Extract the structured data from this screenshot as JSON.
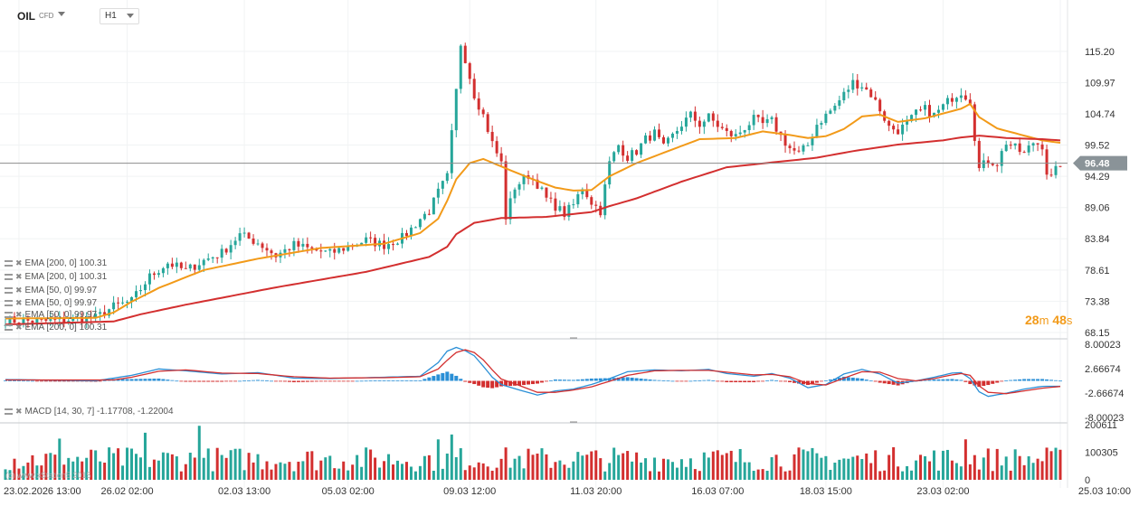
{
  "header": {
    "symbol": "OIL",
    "symbol_type": "CFD",
    "timeframe": "H1"
  },
  "legends": [
    "EMA [200, 0] 100.31",
    "EMA [200, 0] 100.31",
    "EMA [50, 0] 99.97",
    "EMA [50, 0] 99.97",
    "EMA [50, 0] 99.97",
    "EMA [200, 0] 100.31"
  ],
  "macd_legend": "MACD [14, 30, 7] -1.17708, -1.22004",
  "timer": {
    "minutes": "28",
    "m_unit": "m",
    "seconds": "48",
    "s_unit": "s"
  },
  "watermark": "(c) www.xStation5 2015",
  "colors": {
    "up": "#26a69a",
    "down": "#d32f2f",
    "ema50": "#f29a19",
    "ema200": "#d32f2f",
    "macd_line": "#2a8fd6",
    "signal_line": "#d32f2f",
    "price_tag": "#8a9398"
  },
  "chart_data": [
    {
      "type": "candlestick",
      "title": "OIL",
      "y_ticks": [
        "115.20",
        "109.97",
        "104.74",
        "99.52",
        "94.29",
        "89.06",
        "83.84",
        "78.61",
        "73.38",
        "68.15"
      ],
      "ylim": [
        68.15,
        118.5
      ],
      "current_price": "96.48",
      "x_ticks": [
        "23.02.2026 13:00",
        "26.02 02:00",
        "02.03 13:00",
        "05.03 02:00",
        "09.03 12:00",
        "11.03 20:00",
        "16.03 07:00",
        "18.03 15:00",
        "23.03 02:00",
        "25.03 10:00"
      ],
      "close_path": [
        [
          0,
          70.2
        ],
        [
          8,
          70.0
        ],
        [
          14,
          70.3
        ],
        [
          20,
          70.6
        ],
        [
          24,
          72.5
        ],
        [
          28,
          73.4
        ],
        [
          32,
          77.5
        ],
        [
          36,
          79.8
        ],
        [
          40,
          78.5
        ],
        [
          44,
          80.2
        ],
        [
          48,
          81.5
        ],
        [
          52,
          84.5
        ],
        [
          56,
          83.2
        ],
        [
          60,
          81.0
        ],
        [
          64,
          82.8
        ],
        [
          68,
          82.0
        ],
        [
          72,
          81.4
        ],
        [
          76,
          82.5
        ],
        [
          80,
          83.6
        ],
        [
          84,
          82.8
        ],
        [
          88,
          84.0
        ],
        [
          90,
          85.5
        ],
        [
          92,
          87.2
        ],
        [
          94,
          88.5
        ],
        [
          96,
          91.6
        ],
        [
          98,
          94.2
        ],
        [
          100,
          108.5
        ],
        [
          101,
          116.5
        ],
        [
          102,
          114.0
        ],
        [
          104,
          108.0
        ],
        [
          106,
          104.5
        ],
        [
          108,
          99.8
        ],
        [
          110,
          96.5
        ],
        [
          111,
          87.5
        ],
        [
          113,
          92.5
        ],
        [
          116,
          94.5
        ],
        [
          118,
          93.0
        ],
        [
          120,
          90.5
        ],
        [
          122,
          89.3
        ],
        [
          124,
          88.0
        ],
        [
          126,
          89.5
        ],
        [
          128,
          92.5
        ],
        [
          130,
          90.0
        ],
        [
          132,
          88.5
        ],
        [
          134,
          96.5
        ],
        [
          136,
          99.5
        ],
        [
          138,
          97.5
        ],
        [
          140,
          98.5
        ],
        [
          142,
          100.5
        ],
        [
          144,
          101.5
        ],
        [
          146,
          99.0
        ],
        [
          148,
          101.0
        ],
        [
          150,
          103.0
        ],
        [
          152,
          104.5
        ],
        [
          154,
          103.0
        ],
        [
          156,
          104.2
        ],
        [
          158,
          102.8
        ],
        [
          160,
          101.5
        ],
        [
          162,
          101.0
        ],
        [
          164,
          102.5
        ],
        [
          166,
          103.8
        ],
        [
          168,
          103.0
        ],
        [
          170,
          103.5
        ],
        [
          172,
          101.0
        ],
        [
          174,
          99.0
        ],
        [
          176,
          98.0
        ],
        [
          178,
          99.5
        ],
        [
          180,
          103.0
        ],
        [
          182,
          104.5
        ],
        [
          184,
          106.0
        ],
        [
          186,
          108.0
        ],
        [
          188,
          110.0
        ],
        [
          190,
          109.5
        ],
        [
          192,
          108.0
        ],
        [
          194,
          105.5
        ],
        [
          196,
          102.5
        ],
        [
          198,
          102.0
        ],
        [
          200,
          103.0
        ],
        [
          202,
          104.8
        ],
        [
          204,
          105.5
        ],
        [
          206,
          104.5
        ],
        [
          208,
          106.0
        ],
        [
          210,
          107.5
        ],
        [
          212,
          108.5
        ],
        [
          214,
          107.0
        ],
        [
          215,
          101.0
        ],
        [
          216,
          95.5
        ],
        [
          218,
          97.0
        ],
        [
          220,
          96.5
        ],
        [
          222,
          100.0
        ],
        [
          224,
          99.0
        ],
        [
          226,
          98.0
        ],
        [
          228,
          100.0
        ],
        [
          230,
          99.5
        ],
        [
          231,
          95.0
        ],
        [
          232,
          94.0
        ],
        [
          234,
          96.5
        ]
      ]
    },
    {
      "type": "line",
      "series": [
        {
          "name": "EMA [50, 0]",
          "values_path": [
            [
              0,
              70.5
            ],
            [
              20,
              70.6
            ],
            [
              24,
              71.5
            ],
            [
              28,
              73.3
            ],
            [
              34,
              75.6
            ],
            [
              44,
              78.6
            ],
            [
              56,
              80.5
            ],
            [
              70,
              82.3
            ],
            [
              84,
              83.0
            ],
            [
              92,
              84.8
            ],
            [
              96,
              87.2
            ],
            [
              98,
              90.2
            ],
            [
              100,
              93.8
            ],
            [
              103,
              96.5
            ],
            [
              106,
              97.2
            ],
            [
              112,
              95.3
            ],
            [
              118,
              93.5
            ],
            [
              122,
              92.4
            ],
            [
              126,
              91.9
            ],
            [
              130,
              92.0
            ],
            [
              134,
              94.3
            ],
            [
              140,
              96.5
            ],
            [
              148,
              98.8
            ],
            [
              154,
              100.5
            ],
            [
              162,
              100.7
            ],
            [
              168,
              101.8
            ],
            [
              174,
              101.2
            ],
            [
              178,
              100.7
            ],
            [
              182,
              101.0
            ],
            [
              186,
              102.2
            ],
            [
              190,
              104.3
            ],
            [
              194,
              104.6
            ],
            [
              198,
              103.4
            ],
            [
              204,
              104.0
            ],
            [
              208,
              104.8
            ],
            [
              212,
              105.6
            ],
            [
              214,
              106.4
            ],
            [
              216,
              104.2
            ],
            [
              220,
              102.3
            ],
            [
              226,
              101.1
            ],
            [
              230,
              100.3
            ],
            [
              234,
              99.9
            ]
          ]
        },
        {
          "name": "EMA [200, 0]",
          "values_path": [
            [
              0,
              69.5
            ],
            [
              24,
              70.0
            ],
            [
              30,
              71.2
            ],
            [
              40,
              72.8
            ],
            [
              60,
              75.7
            ],
            [
              80,
              78.3
            ],
            [
              94,
              80.8
            ],
            [
              98,
              82.5
            ],
            [
              100,
              84.6
            ],
            [
              104,
              86.5
            ],
            [
              110,
              87.3
            ],
            [
              120,
              87.5
            ],
            [
              130,
              88.3
            ],
            [
              134,
              89.3
            ],
            [
              140,
              90.6
            ],
            [
              150,
              93.4
            ],
            [
              160,
              95.8
            ],
            [
              170,
              96.6
            ],
            [
              180,
              97.4
            ],
            [
              188,
              98.5
            ],
            [
              198,
              99.6
            ],
            [
              208,
              100.3
            ],
            [
              212,
              100.8
            ],
            [
              216,
              101.1
            ],
            [
              222,
              100.7
            ],
            [
              230,
              100.5
            ],
            [
              234,
              100.3
            ]
          ]
        }
      ]
    },
    {
      "type": "macd",
      "name": "MACD [14, 30, 7]",
      "y_ticks": [
        "8.00023",
        "2.66674",
        "-2.66674",
        "-8.00023"
      ],
      "ylim": [
        -8.00023,
        8.00023
      ],
      "macd_path": [
        [
          0,
          0.3
        ],
        [
          20,
          0
        ],
        [
          24,
          0.6
        ],
        [
          28,
          1.2
        ],
        [
          34,
          2.6
        ],
        [
          40,
          2.2
        ],
        [
          48,
          1.5
        ],
        [
          56,
          1.8
        ],
        [
          64,
          0.6
        ],
        [
          72,
          0.5
        ],
        [
          84,
          0.8
        ],
        [
          92,
          1.0
        ],
        [
          96,
          4.0
        ],
        [
          98,
          6.5
        ],
        [
          100,
          7.3
        ],
        [
          102,
          6.6
        ],
        [
          104,
          5.5
        ],
        [
          106,
          3.2
        ],
        [
          108,
          0.8
        ],
        [
          110,
          -0.8
        ],
        [
          114,
          -2.0
        ],
        [
          118,
          -3.1
        ],
        [
          122,
          -2.2
        ],
        [
          126,
          -1.8
        ],
        [
          130,
          -0.8
        ],
        [
          134,
          0.5
        ],
        [
          138,
          2.0
        ],
        [
          144,
          2.4
        ],
        [
          150,
          2.2
        ],
        [
          156,
          2.5
        ],
        [
          160,
          1.6
        ],
        [
          166,
          1.0
        ],
        [
          170,
          1.6
        ],
        [
          174,
          0.6
        ],
        [
          178,
          -1.5
        ],
        [
          182,
          -0.8
        ],
        [
          186,
          1.5
        ],
        [
          190,
          2.5
        ],
        [
          194,
          1.5
        ],
        [
          198,
          -0.5
        ],
        [
          202,
          0
        ],
        [
          206,
          0.8
        ],
        [
          210,
          1.7
        ],
        [
          212,
          1.8
        ],
        [
          214,
          0.5
        ],
        [
          216,
          -2.4
        ],
        [
          218,
          -3.4
        ],
        [
          222,
          -2.7
        ],
        [
          226,
          -1.8
        ],
        [
          230,
          -1.2
        ],
        [
          234,
          -1.177
        ]
      ],
      "signal_path": [
        [
          0,
          0.2
        ],
        [
          24,
          0.2
        ],
        [
          28,
          0.8
        ],
        [
          34,
          2.1
        ],
        [
          40,
          2.4
        ],
        [
          48,
          1.7
        ],
        [
          56,
          1.6
        ],
        [
          64,
          0.9
        ],
        [
          72,
          0.6
        ],
        [
          84,
          0.7
        ],
        [
          92,
          0.9
        ],
        [
          96,
          2.6
        ],
        [
          98,
          4.5
        ],
        [
          100,
          6.2
        ],
        [
          102,
          6.8
        ],
        [
          104,
          6.2
        ],
        [
          106,
          4.6
        ],
        [
          108,
          2.4
        ],
        [
          110,
          0.4
        ],
        [
          114,
          -1.0
        ],
        [
          118,
          -2.5
        ],
        [
          122,
          -2.5
        ],
        [
          126,
          -2.0
        ],
        [
          130,
          -1.3
        ],
        [
          134,
          -0.1
        ],
        [
          138,
          1.2
        ],
        [
          144,
          2.2
        ],
        [
          150,
          2.3
        ],
        [
          156,
          2.3
        ],
        [
          160,
          1.9
        ],
        [
          166,
          1.3
        ],
        [
          170,
          1.4
        ],
        [
          174,
          0.9
        ],
        [
          178,
          -0.6
        ],
        [
          182,
          -0.9
        ],
        [
          186,
          0.6
        ],
        [
          190,
          2.0
        ],
        [
          194,
          1.9
        ],
        [
          198,
          0.5
        ],
        [
          202,
          0
        ],
        [
          206,
          0.5
        ],
        [
          210,
          1.3
        ],
        [
          212,
          1.6
        ],
        [
          214,
          1.2
        ],
        [
          216,
          -1.1
        ],
        [
          218,
          -2.5
        ],
        [
          222,
          -2.8
        ],
        [
          226,
          -2.2
        ],
        [
          230,
          -1.6
        ],
        [
          234,
          -1.22
        ]
      ]
    },
    {
      "type": "bar",
      "name": "Volume",
      "y_ticks": [
        "200611",
        "100305",
        "0"
      ],
      "ylim": [
        0,
        200611
      ],
      "bars": 235
    }
  ]
}
